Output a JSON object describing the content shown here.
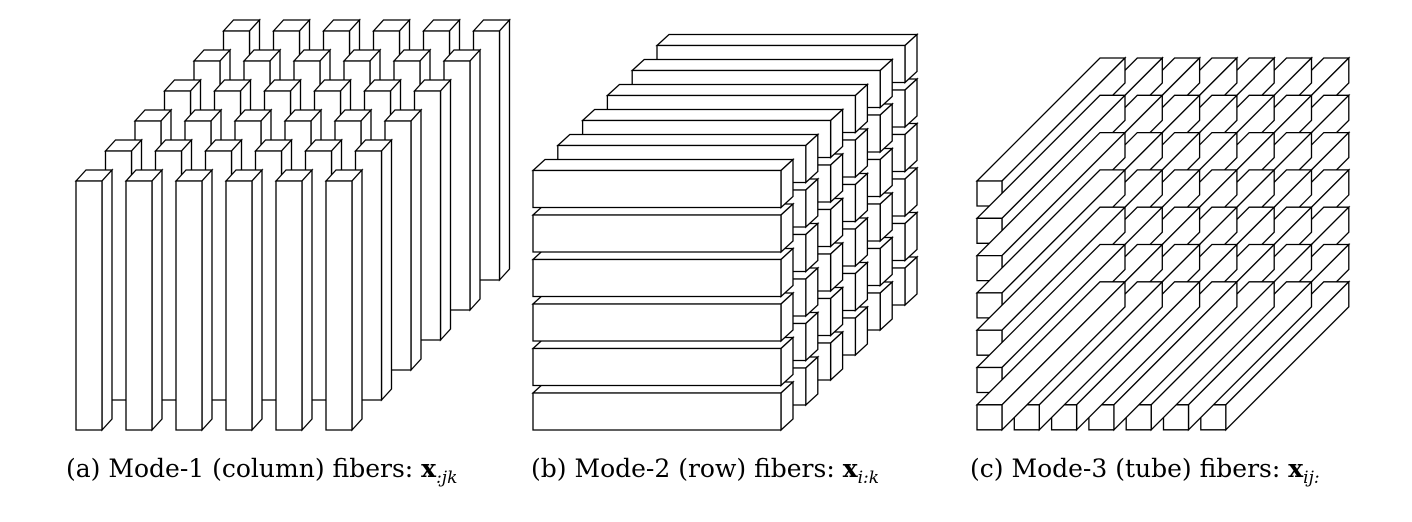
{
  "panels": [
    {
      "id": "a",
      "label": "(a)",
      "text": "Mode-1 (column) fibers:",
      "symbol": "x",
      "subscript": ":jk",
      "grid": 6
    },
    {
      "id": "b",
      "label": "(b)",
      "text": "Mode-2 (row) fibers:",
      "symbol": "x",
      "subscript": "i:k",
      "grid": 6
    },
    {
      "id": "c",
      "label": "(c)",
      "text": "Mode-3 (tube) fibers:",
      "symbol": "x",
      "subscript": "ij:",
      "grid": 7
    }
  ],
  "colors": {
    "stroke": "#000000",
    "fill": "#ffffff"
  }
}
